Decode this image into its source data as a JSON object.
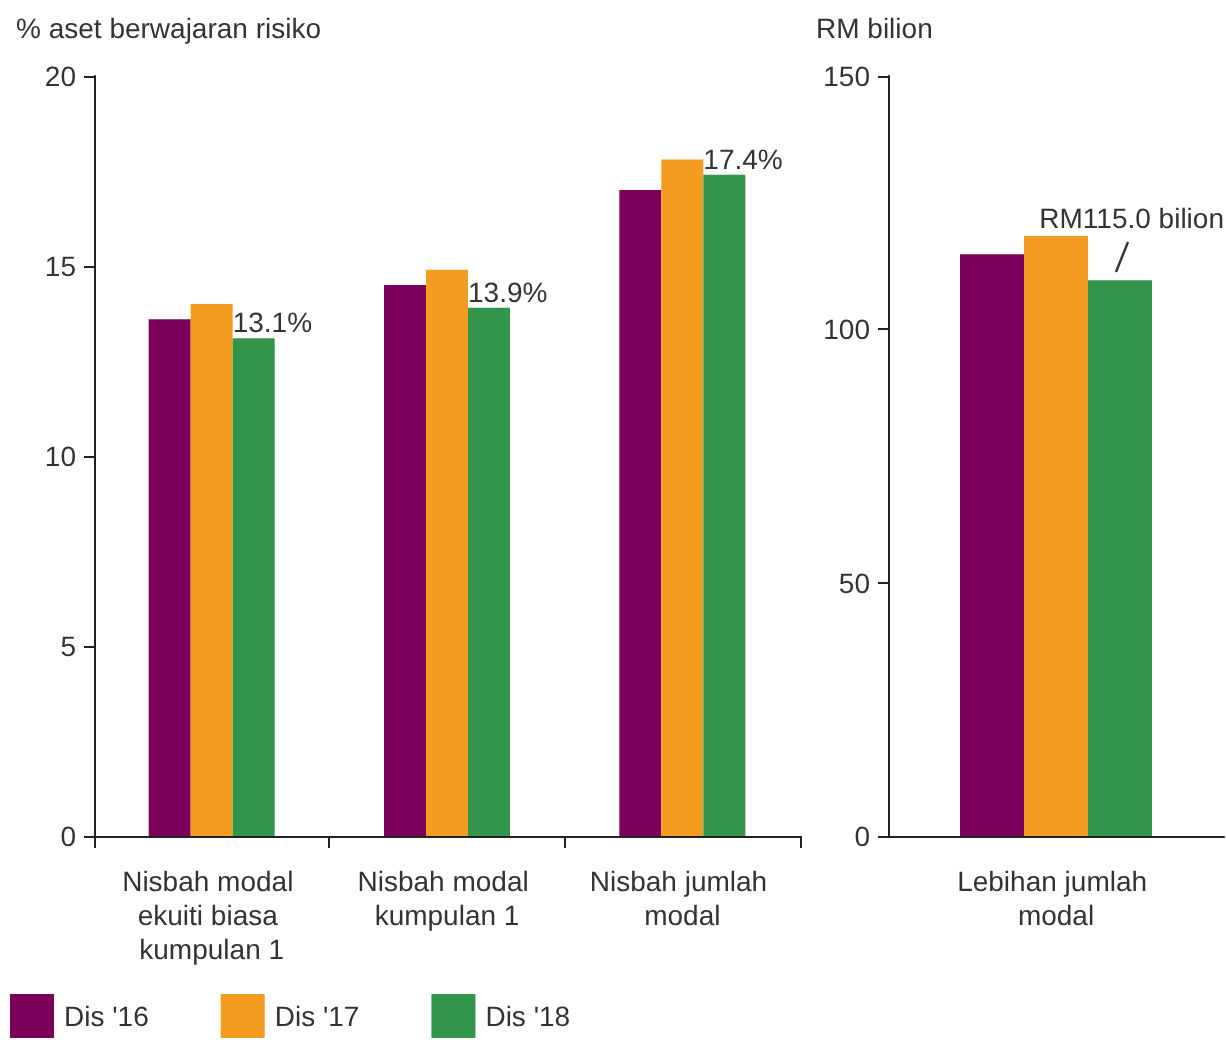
{
  "chart_data": [
    {
      "type": "bar",
      "ylabel": "% aset berwajaran risiko",
      "categories": [
        "Nisbah modal ekuiti biasa kumpulan 1",
        "Nisbah modal kumpulan 1",
        "Nisbah jumlah modal"
      ],
      "ylim": [
        0,
        20
      ],
      "yticks": [
        0,
        5,
        10,
        15,
        20
      ],
      "legend": "bottom left",
      "series": [
        {
          "name": "Dis '16",
          "color": "#7b0059",
          "values": [
            13.6,
            14.5,
            17.0
          ]
        },
        {
          "name": "Dis '17",
          "color": "#f49c1f",
          "values": [
            14.0,
            14.9,
            17.8
          ]
        },
        {
          "name": "Dis '18",
          "color": "#33944b",
          "values": [
            13.1,
            13.9,
            17.4
          ],
          "value_labels": [
            "13.1%",
            "13.9%",
            "17.4%"
          ]
        }
      ]
    },
    {
      "type": "bar",
      "ylabel": "RM bilion",
      "categories": [
        "Lebihan jumlah modal"
      ],
      "ylim": [
        0,
        150
      ],
      "yticks": [
        0,
        50,
        100,
        150
      ],
      "annotations": [
        "RM115.0 bilion"
      ],
      "series": [
        {
          "color": "#7b0059",
          "values": [
            114.8
          ]
        },
        {
          "color": "#f49c1f",
          "values": [
            118.4
          ]
        },
        {
          "color": "#33944b",
          "values": [
            109.7
          ]
        }
      ]
    }
  ]
}
